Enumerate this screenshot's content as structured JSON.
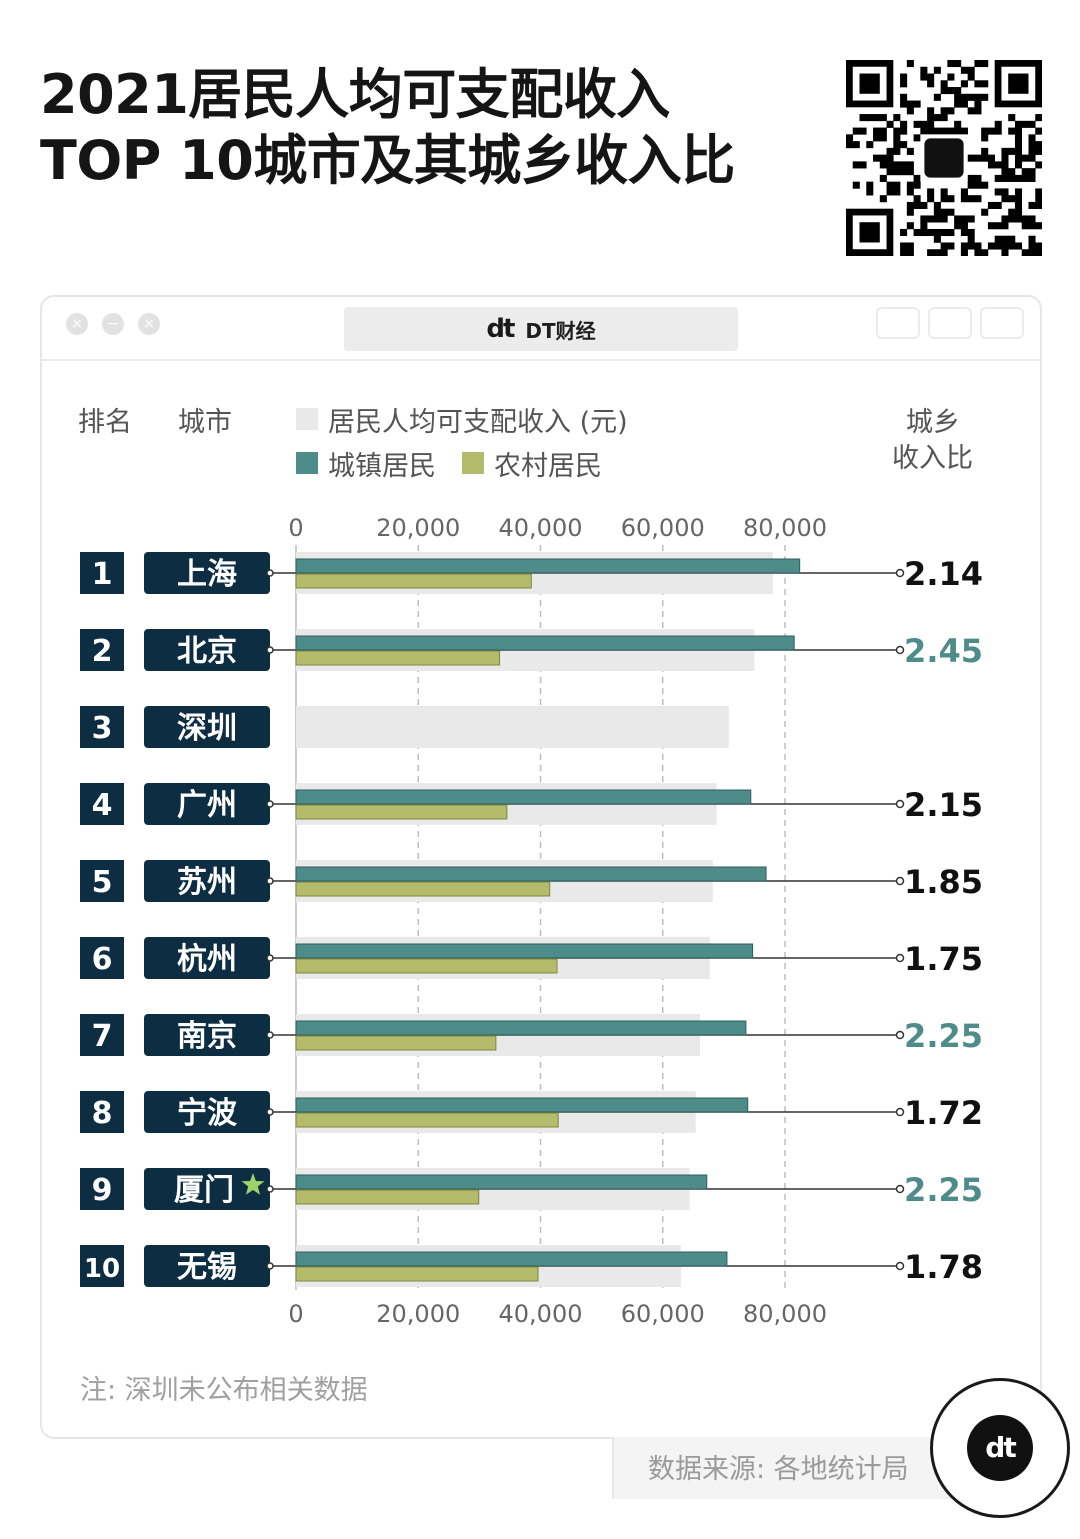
{
  "title": {
    "line1": "2021居民人均可支配收入",
    "line2": "TOP 10城市及其城乡收入比"
  },
  "window": {
    "address_label": "DT财经",
    "logo_text": "dt"
  },
  "header": {
    "rank": "排名",
    "city": "城市",
    "legend_total": "居民人均可支配收入 (元)",
    "legend_urban": "城镇居民",
    "legend_rural": "农村居民",
    "ratio_line1": "城乡",
    "ratio_line2": "收入比"
  },
  "colors": {
    "total": "#e9e9e9",
    "urban": "#4e8c8a",
    "rural": "#b4bb6a",
    "rank_box": "#0d2d42",
    "ratio_highlight": "#4e8c8a",
    "ratio_normal": "#111111"
  },
  "chart_data": {
    "type": "bar",
    "orientation": "horizontal",
    "xlim": [
      0,
      80000
    ],
    "ticks": [
      "0",
      "20,000",
      "40,000",
      "60,000",
      "80,000"
    ],
    "tick_values": [
      0,
      20000,
      40000,
      60000,
      80000
    ],
    "grid": "dashed vertical",
    "rows": [
      {
        "rank": "1",
        "city": "上海",
        "total": 78000,
        "urban": 82400,
        "rural": 38500,
        "ratio": "2.14",
        "highlight": false,
        "star": false
      },
      {
        "rank": "2",
        "city": "北京",
        "total": 75000,
        "urban": 81500,
        "rural": 33300,
        "ratio": "2.45",
        "highlight": true,
        "star": false
      },
      {
        "rank": "3",
        "city": "深圳",
        "total": 70800,
        "urban": null,
        "rural": null,
        "ratio": "",
        "highlight": false,
        "star": false
      },
      {
        "rank": "4",
        "city": "广州",
        "total": 68800,
        "urban": 74400,
        "rural": 34500,
        "ratio": "2.15",
        "highlight": false,
        "star": false
      },
      {
        "rank": "5",
        "city": "苏州",
        "total": 68200,
        "urban": 76900,
        "rural": 41500,
        "ratio": "1.85",
        "highlight": false,
        "star": false
      },
      {
        "rank": "6",
        "city": "杭州",
        "total": 67700,
        "urban": 74700,
        "rural": 42700,
        "ratio": "1.75",
        "highlight": false,
        "star": false
      },
      {
        "rank": "7",
        "city": "南京",
        "total": 66100,
        "urban": 73600,
        "rural": 32700,
        "ratio": "2.25",
        "highlight": true,
        "star": false
      },
      {
        "rank": "8",
        "city": "宁波",
        "total": 65400,
        "urban": 73900,
        "rural": 42900,
        "ratio": "1.72",
        "highlight": false,
        "star": false
      },
      {
        "rank": "9",
        "city": "厦门",
        "total": 64400,
        "urban": 67200,
        "rural": 29900,
        "ratio": "2.25",
        "highlight": true,
        "star": true
      },
      {
        "rank": "10",
        "city": "无锡",
        "total": 63000,
        "urban": 70500,
        "rural": 39600,
        "ratio": "1.78",
        "highlight": false,
        "star": false
      }
    ]
  },
  "footer": {
    "note": "注: 深圳未公布相关数据",
    "source": "数据来源: 各地统计局",
    "badge_text": "dt"
  }
}
